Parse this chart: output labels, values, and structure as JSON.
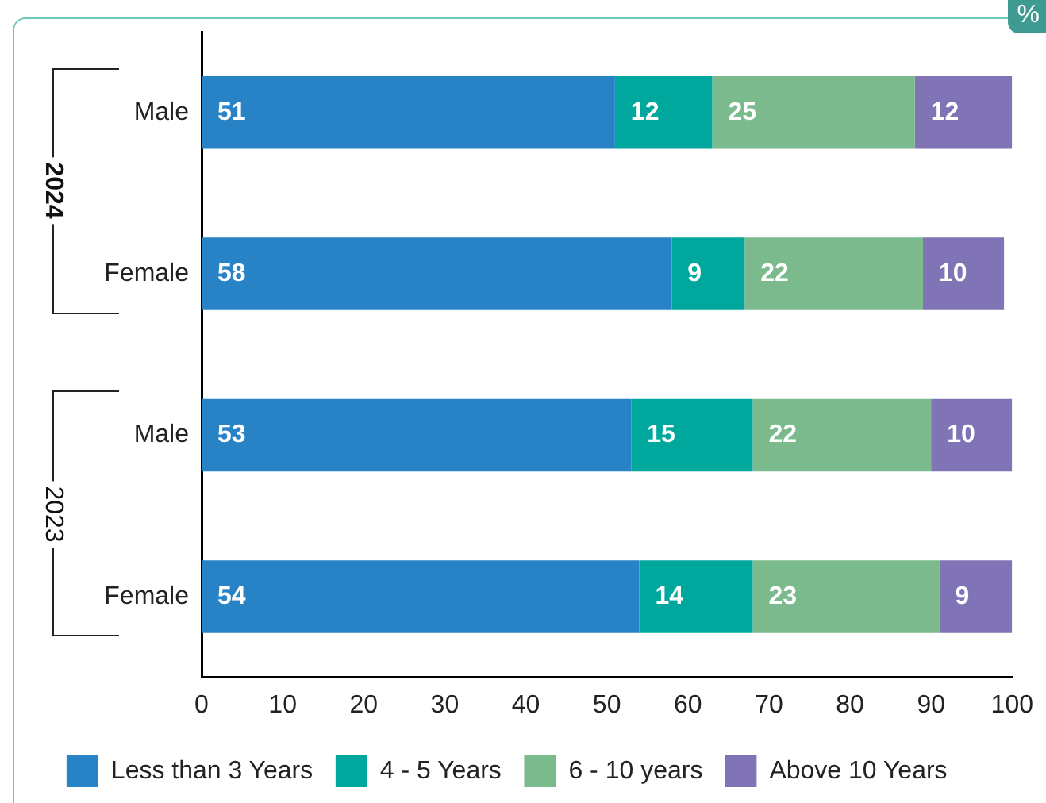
{
  "chart_data": {
    "type": "bar",
    "orientation": "horizontal",
    "stacked": true,
    "categories": [
      "Male",
      "Female",
      "Male",
      "Female"
    ],
    "series": [
      {
        "name": "Less than 3 Years",
        "color": "#2783c6",
        "values": [
          51,
          58,
          53,
          54
        ]
      },
      {
        "name": "4 - 5 Years",
        "color": "#00a79d",
        "values": [
          12,
          9,
          15,
          14
        ]
      },
      {
        "name": "6 - 10 years",
        "color": "#7aba8c",
        "values": [
          25,
          22,
          22,
          23
        ]
      },
      {
        "name": "Above 10 Years",
        "color": "#8073b6",
        "values": [
          12,
          10,
          10,
          9
        ]
      }
    ],
    "xlim": [
      0,
      100
    ],
    "xticks": [
      0,
      10,
      20,
      30,
      40,
      50,
      60,
      70,
      80,
      90,
      100
    ],
    "grid": false,
    "legend": "bottom",
    "data_labels": true,
    "annotations": [
      "2024",
      "2023",
      "%"
    ]
  }
}
